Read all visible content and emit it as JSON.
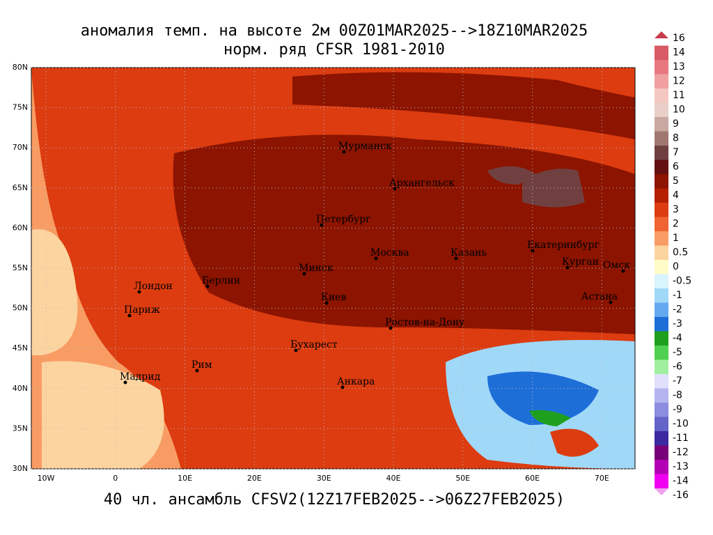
{
  "title": [
    "аномалия темп. на высоте 2м 00Z01MAR2025-->18Z10MAR2025",
    "норм. ряд CFSR 1981-2010"
  ],
  "footer": "40 чл. ансамбль CFSV2(12Z17FEB2025-->06Z27FEB2025)",
  "lat_labels": [
    "80N",
    "75N",
    "70N",
    "65N",
    "60N",
    "55N",
    "50N",
    "45N",
    "40N",
    "35N",
    "30N"
  ],
  "lon_labels": [
    "10W",
    "0",
    "10E",
    "20E",
    "30E",
    "40E",
    "50E",
    "60E",
    "70E"
  ],
  "cities": [
    "Мурманск",
    "Архангельск",
    "Петербург",
    "Москва",
    "Казань",
    "Екатеринбург",
    "Курган",
    "Омск",
    "Астана",
    "Минск",
    "Берлин",
    "Лондон",
    "Париж",
    "Киев",
    "Ростов-на-Дону",
    "Бухарест",
    "Рим",
    "Мадрид",
    "Анкара"
  ],
  "colorbar": {
    "levels": [
      16,
      14,
      13,
      12,
      11,
      10,
      9,
      8,
      7,
      6,
      5,
      4,
      3,
      2,
      1,
      0.5,
      0,
      -0.5,
      -1,
      -2,
      -3,
      -4,
      -5,
      -6,
      -7,
      -8,
      -9,
      -10,
      -11,
      -12,
      -13,
      -14,
      -16
    ],
    "colors": [
      "#c83c4c",
      "#d85a64",
      "#e87880",
      "#f0a0a0",
      "#f4c8c0",
      "#e8d0c8",
      "#c8a8a0",
      "#a07870",
      "#704040",
      "#641010",
      "#8c1400",
      "#b42000",
      "#dc3c10",
      "#f06432",
      "#f89c64",
      "#fcd4a0",
      "#fffcc8",
      "#d8f4fc",
      "#a0d8f8",
      "#64a8f0",
      "#1e6ed8",
      "#1ea01e",
      "#50d050",
      "#a0f0a0",
      "#e0e0fc",
      "#b4b4f0",
      "#8c8ce0",
      "#6464c8",
      "#3c28a0",
      "#780078",
      "#b400b4",
      "#f000f0",
      "#f0a0f0"
    ]
  }
}
